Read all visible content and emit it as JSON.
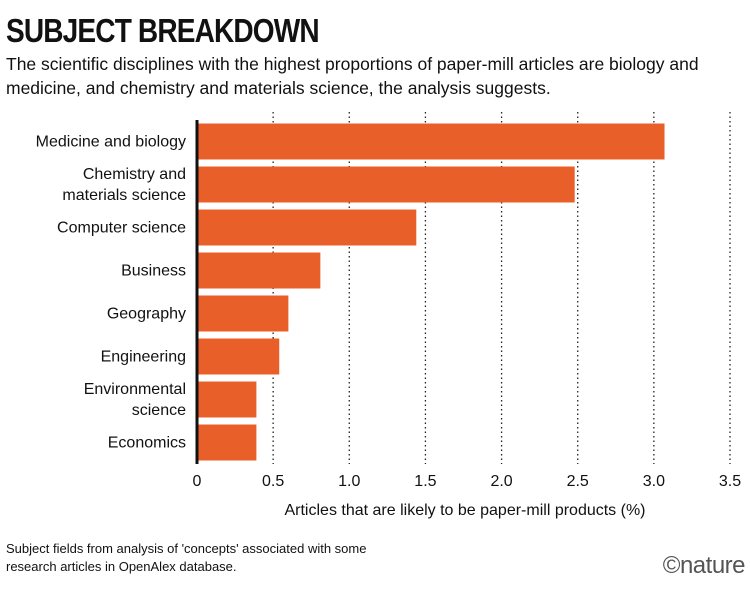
{
  "chart_data": {
    "type": "barh",
    "title": "SUBJECT BREAKDOWN",
    "subtitle": "The scientific disciplines with the highest proportions of paper-mill articles are biology and medicine, and chemistry and materials science, the analysis suggests.",
    "categories": [
      "Medicine and biology",
      "Chemistry and\nmaterials science",
      "Computer science",
      "Business",
      "Geography",
      "Engineering",
      "Environmental\nscience",
      "Economics"
    ],
    "values": [
      3.07,
      2.48,
      1.44,
      0.81,
      0.6,
      0.54,
      0.39,
      0.39
    ],
    "color": "#e85f2a",
    "xlabel": "Articles that are likely to be paper-mill products (%)",
    "xlim": [
      0,
      3.5
    ],
    "xticks": [
      0,
      0.5,
      {
        "value": 1,
        "label": "1.0"
      },
      1.5,
      {
        "value": 2,
        "label": "2.0"
      },
      2.5,
      {
        "value": 3,
        "label": "3.0"
      },
      3.5
    ],
    "grid": true,
    "note": "Subject fields from analysis of 'concepts' associated with some research articles in OpenAlex database.",
    "credit": "©nature"
  }
}
